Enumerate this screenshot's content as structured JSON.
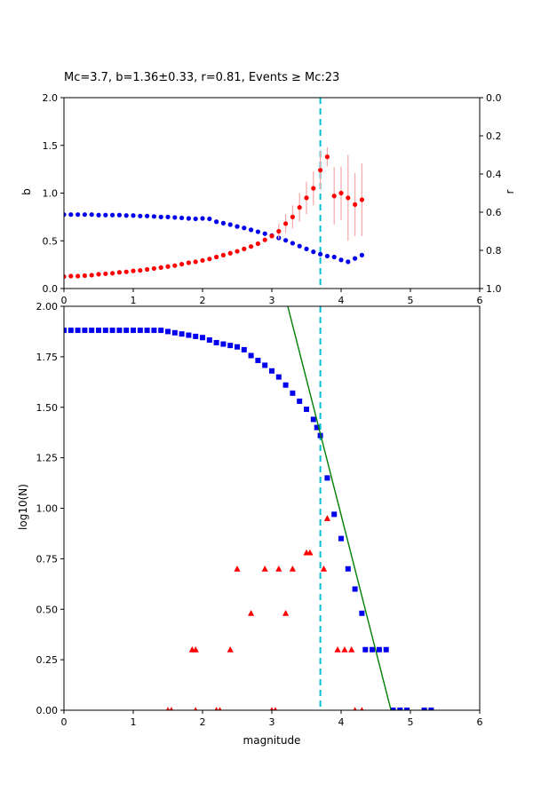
{
  "figure": {
    "background": "#ffffff"
  },
  "colors": {
    "blue": "#0000ee",
    "red": "#ff0000",
    "pink": "#f4a9a9",
    "cyan": "#00bfcf",
    "green": "#007f00",
    "axis": "#000000"
  },
  "chart_data": [
    {
      "type": "scatter",
      "title": "Mc=3.7, b=1.36±0.33, r=0.81, Events ≥ Mc:23",
      "xlabel": "",
      "ylabel_left": "b",
      "ylabel_right": "r",
      "xlim": [
        0,
        6
      ],
      "ylim": [
        0,
        2
      ],
      "ylim_right_top_to_bottom": [
        0.0,
        1.0
      ],
      "x_ticks": [
        0,
        1,
        2,
        3,
        4,
        5,
        6
      ],
      "y_ticks": [
        [
          0.0,
          "0.0"
        ],
        [
          0.5,
          "0.5"
        ],
        [
          1.0,
          "1.0"
        ],
        [
          1.5,
          "1.5"
        ],
        [
          2.0,
          "2.0"
        ]
      ],
      "y_ticks_right": [
        [
          0.0,
          "0.0"
        ],
        [
          0.2,
          "0.2"
        ],
        [
          0.4,
          "0.4"
        ],
        [
          0.6,
          "0.6"
        ],
        [
          0.8,
          "0.8"
        ],
        [
          1.0,
          "1.0"
        ]
      ],
      "vline_x": 3.7,
      "series": [
        {
          "name": "b-value-vs-cutoff",
          "marker": "circle",
          "color": "#0000ee",
          "points": [
            [
              0.0,
              0.775
            ],
            [
              0.1,
              0.775
            ],
            [
              0.2,
              0.775
            ],
            [
              0.3,
              0.775
            ],
            [
              0.4,
              0.775
            ],
            [
              0.5,
              0.77
            ],
            [
              0.6,
              0.77
            ],
            [
              0.7,
              0.77
            ],
            [
              0.8,
              0.77
            ],
            [
              0.9,
              0.765
            ],
            [
              1.0,
              0.765
            ],
            [
              1.1,
              0.76
            ],
            [
              1.2,
              0.76
            ],
            [
              1.3,
              0.755
            ],
            [
              1.4,
              0.75
            ],
            [
              1.5,
              0.75
            ],
            [
              1.6,
              0.745
            ],
            [
              1.7,
              0.74
            ],
            [
              1.8,
              0.735
            ],
            [
              1.9,
              0.73
            ],
            [
              2.0,
              0.735
            ],
            [
              2.1,
              0.73
            ],
            [
              2.2,
              0.7
            ],
            [
              2.3,
              0.685
            ],
            [
              2.4,
              0.67
            ],
            [
              2.5,
              0.65
            ],
            [
              2.6,
              0.635
            ],
            [
              2.7,
              0.615
            ],
            [
              2.8,
              0.595
            ],
            [
              2.9,
              0.575
            ],
            [
              3.0,
              0.555
            ],
            [
              3.1,
              0.53
            ],
            [
              3.2,
              0.505
            ],
            [
              3.3,
              0.475
            ],
            [
              3.4,
              0.445
            ],
            [
              3.5,
              0.415
            ],
            [
              3.6,
              0.385
            ],
            [
              3.7,
              0.36
            ],
            [
              3.8,
              0.34
            ],
            [
              3.9,
              0.33
            ],
            [
              4.0,
              0.3
            ],
            [
              4.1,
              0.28
            ],
            [
              4.2,
              0.315
            ],
            [
              4.3,
              0.35
            ]
          ]
        },
        {
          "name": "r-value-vs-cutoff",
          "marker": "circle",
          "color": "#ff0000",
          "errorbar_color": "#f4a9a9",
          "units_note": "y given in left-axis (b) coordinates; right axis r runs 0.0 top to 1.0 bottom",
          "points": [
            [
              0.0,
              0.125,
              0
            ],
            [
              0.1,
              0.13,
              0
            ],
            [
              0.2,
              0.13,
              0
            ],
            [
              0.3,
              0.135,
              0
            ],
            [
              0.4,
              0.14,
              0
            ],
            [
              0.5,
              0.15,
              0
            ],
            [
              0.6,
              0.155,
              0
            ],
            [
              0.7,
              0.16,
              0
            ],
            [
              0.8,
              0.17,
              0
            ],
            [
              0.9,
              0.175,
              0
            ],
            [
              1.0,
              0.185,
              0
            ],
            [
              1.1,
              0.19,
              0
            ],
            [
              1.2,
              0.2,
              0
            ],
            [
              1.3,
              0.21,
              0
            ],
            [
              1.4,
              0.22,
              0
            ],
            [
              1.5,
              0.23,
              0
            ],
            [
              1.6,
              0.24,
              0
            ],
            [
              1.7,
              0.255,
              0
            ],
            [
              1.8,
              0.27,
              0
            ],
            [
              1.9,
              0.28,
              0
            ],
            [
              2.0,
              0.295,
              0
            ],
            [
              2.1,
              0.31,
              0
            ],
            [
              2.2,
              0.33,
              0
            ],
            [
              2.3,
              0.35,
              0
            ],
            [
              2.4,
              0.37,
              0
            ],
            [
              2.5,
              0.39,
              0
            ],
            [
              2.6,
              0.415,
              0
            ],
            [
              2.7,
              0.44,
              0
            ],
            [
              2.8,
              0.47,
              0
            ],
            [
              2.9,
              0.51,
              0
            ],
            [
              3.0,
              0.55,
              0
            ],
            [
              3.1,
              0.6,
              0.08
            ],
            [
              3.2,
              0.68,
              0.1
            ],
            [
              3.3,
              0.75,
              0.12
            ],
            [
              3.4,
              0.85,
              0.15
            ],
            [
              3.5,
              0.95,
              0.17
            ],
            [
              3.6,
              1.05,
              0.18
            ],
            [
              3.7,
              1.24,
              0.2
            ],
            [
              3.8,
              1.38,
              0.1
            ],
            [
              3.9,
              0.97,
              0.3
            ],
            [
              4.0,
              1.0,
              0.28
            ],
            [
              4.1,
              0.95,
              0.45
            ],
            [
              4.2,
              0.88,
              0.33
            ],
            [
              4.3,
              0.93,
              0.38
            ]
          ]
        }
      ]
    },
    {
      "type": "scatter",
      "title": "",
      "xlabel": "magnitude",
      "ylabel": "log10(N)",
      "xlim": [
        0,
        6
      ],
      "ylim": [
        0,
        2
      ],
      "x_ticks": [
        0,
        1,
        2,
        3,
        4,
        5,
        6
      ],
      "y_ticks": [
        [
          0.0,
          "0.00"
        ],
        [
          0.25,
          "0.25"
        ],
        [
          0.5,
          "0.50"
        ],
        [
          0.75,
          "0.75"
        ],
        [
          1.0,
          "1.00"
        ],
        [
          1.25,
          "1.25"
        ],
        [
          1.5,
          "1.50"
        ],
        [
          1.75,
          "1.75"
        ],
        [
          2.0,
          "2.00"
        ]
      ],
      "vline_x": 3.7,
      "series": [
        {
          "name": "cumulative-event-count",
          "marker": "square",
          "color": "#0000ee",
          "points": [
            [
              0.0,
              1.881
            ],
            [
              0.1,
              1.881
            ],
            [
              0.2,
              1.881
            ],
            [
              0.3,
              1.881
            ],
            [
              0.4,
              1.881
            ],
            [
              0.5,
              1.881
            ],
            [
              0.6,
              1.881
            ],
            [
              0.7,
              1.881
            ],
            [
              0.8,
              1.881
            ],
            [
              0.9,
              1.881
            ],
            [
              1.0,
              1.881
            ],
            [
              1.1,
              1.881
            ],
            [
              1.2,
              1.881
            ],
            [
              1.3,
              1.881
            ],
            [
              1.4,
              1.881
            ],
            [
              1.5,
              1.875
            ],
            [
              1.6,
              1.869
            ],
            [
              1.7,
              1.863
            ],
            [
              1.8,
              1.857
            ],
            [
              1.9,
              1.851
            ],
            [
              2.0,
              1.845
            ],
            [
              2.1,
              1.833
            ],
            [
              2.2,
              1.82
            ],
            [
              2.3,
              1.813
            ],
            [
              2.4,
              1.806
            ],
            [
              2.5,
              1.799
            ],
            [
              2.6,
              1.785
            ],
            [
              2.7,
              1.756
            ],
            [
              2.8,
              1.732
            ],
            [
              2.9,
              1.708
            ],
            [
              3.0,
              1.68
            ],
            [
              3.1,
              1.65
            ],
            [
              3.2,
              1.61
            ],
            [
              3.3,
              1.57
            ],
            [
              3.4,
              1.53
            ],
            [
              3.5,
              1.49
            ],
            [
              3.6,
              1.44
            ],
            [
              3.65,
              1.4
            ],
            [
              3.7,
              1.36
            ],
            [
              3.8,
              1.15
            ],
            [
              3.9,
              0.97
            ],
            [
              4.0,
              0.85
            ],
            [
              4.1,
              0.7
            ],
            [
              4.2,
              0.6
            ],
            [
              4.3,
              0.48
            ],
            [
              4.35,
              0.3
            ],
            [
              4.45,
              0.3
            ],
            [
              4.55,
              0.3
            ],
            [
              4.65,
              0.3
            ],
            [
              4.75,
              0.0
            ],
            [
              4.85,
              0.0
            ],
            [
              4.95,
              0.0
            ],
            [
              5.2,
              0.0
            ],
            [
              5.3,
              0.0
            ]
          ]
        },
        {
          "name": "incremental-event-count",
          "marker": "triangle",
          "color": "#ff0000",
          "points": [
            [
              1.5,
              0.0
            ],
            [
              1.55,
              0.0
            ],
            [
              1.9,
              0.0
            ],
            [
              2.2,
              0.0
            ],
            [
              2.25,
              0.0
            ],
            [
              3.0,
              0.0
            ],
            [
              3.05,
              0.0
            ],
            [
              4.2,
              0.0
            ],
            [
              4.3,
              0.0
            ],
            [
              1.85,
              0.3
            ],
            [
              1.9,
              0.3
            ],
            [
              2.4,
              0.3
            ],
            [
              3.95,
              0.3
            ],
            [
              4.05,
              0.3
            ],
            [
              4.15,
              0.3
            ],
            [
              2.7,
              0.48
            ],
            [
              3.2,
              0.48
            ],
            [
              2.5,
              0.7
            ],
            [
              2.9,
              0.7
            ],
            [
              3.1,
              0.7
            ],
            [
              3.3,
              0.7
            ],
            [
              3.75,
              0.7
            ],
            [
              3.5,
              0.78
            ],
            [
              3.55,
              0.78
            ],
            [
              3.8,
              0.95
            ]
          ]
        },
        {
          "name": "gutenberg-richter-fit-line",
          "marker": "line",
          "color": "#007f00",
          "points": [
            [
              3.23,
              2.0
            ],
            [
              4.72,
              0.0
            ]
          ]
        }
      ]
    }
  ]
}
